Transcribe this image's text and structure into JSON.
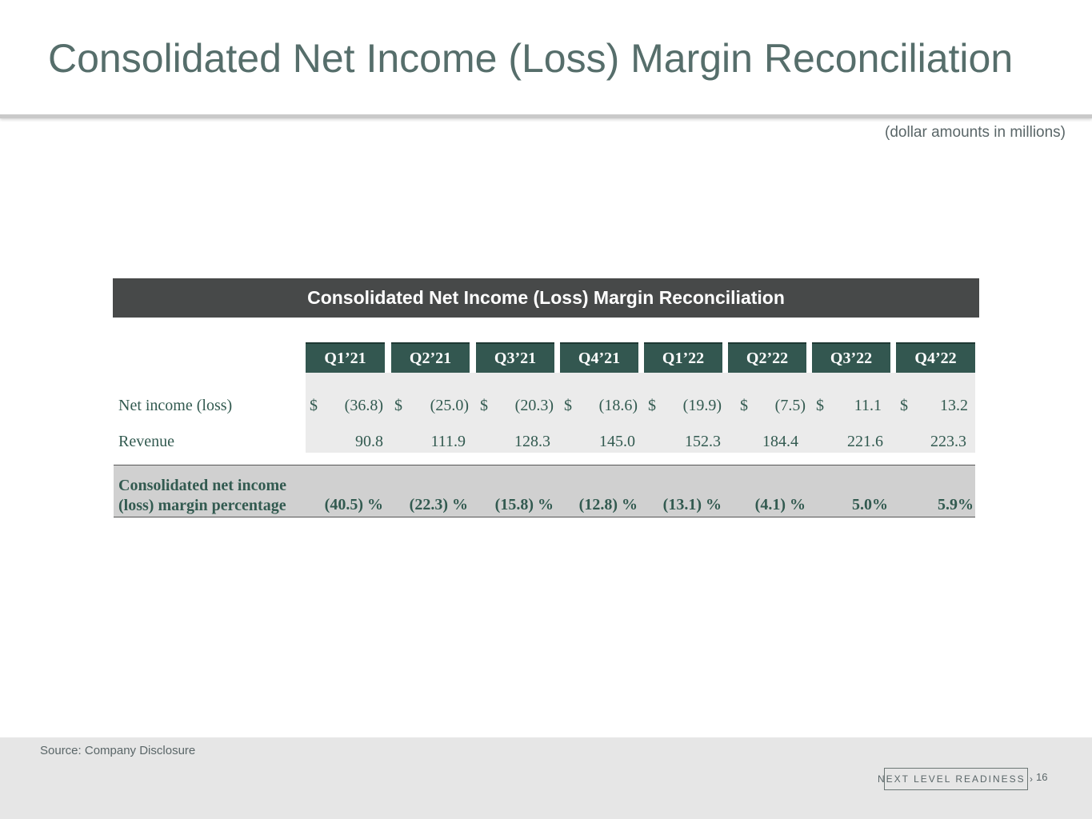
{
  "slide": {
    "title": "Consolidated Net Income (Loss) Margin Reconciliation",
    "units_note": "(dollar amounts in millions)"
  },
  "table": {
    "banner": "Consolidated Net Income (Loss) Margin Reconciliation",
    "quarters": [
      "Q1’21",
      "Q2’21",
      "Q3’21",
      "Q4’21",
      "Q1’22",
      "Q2’22",
      "Q3’22",
      "Q4’22"
    ],
    "currency_symbol": "$",
    "rows": [
      {
        "label": "Net income (loss)",
        "values": [
          "(36.8)",
          "(25.0)",
          "(20.3)",
          "(18.6)",
          "(19.9)",
          "(7.5)",
          "11.1",
          "13.2"
        ]
      },
      {
        "label": "Revenue",
        "values": [
          "90.8",
          "111.9",
          "128.3",
          "145.0",
          "152.3",
          "184.4",
          "221.6",
          "223.3"
        ]
      }
    ],
    "total": {
      "label_line1": "Consolidated net income",
      "label_line2": "(loss) margin percentage",
      "values": [
        "(40.5) %",
        "(22.3) %",
        "(15.8) %",
        "(12.8) %",
        "(13.1) %",
        "(4.1) %",
        "5.0%",
        "5.9%"
      ]
    }
  },
  "footer": {
    "source": "Source: Company Disclosure",
    "tagline": "NEXT LEVEL READINESS ›",
    "page_number": "16"
  },
  "colors": {
    "title": "#566e6b",
    "header_fill": "#335750",
    "banner_fill": "#474949",
    "text_green": "#325a50"
  }
}
